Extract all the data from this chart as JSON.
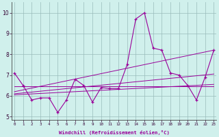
{
  "x": [
    0,
    1,
    2,
    3,
    4,
    5,
    6,
    7,
    8,
    9,
    10,
    11,
    12,
    13,
    14,
    15,
    16,
    17,
    18,
    19,
    20,
    21,
    22,
    23
  ],
  "line1": [
    7.1,
    6.5,
    5.8,
    5.9,
    5.9,
    5.2,
    5.8,
    6.8,
    6.5,
    5.7,
    6.4,
    6.35,
    6.35,
    7.5,
    9.7,
    10.0,
    8.3,
    8.2,
    7.1,
    7.0,
    6.5,
    5.8,
    6.9,
    8.2
  ],
  "trend1_x": [
    0,
    23
  ],
  "trend1_y": [
    6.45,
    6.45
  ],
  "trend2_x": [
    0,
    23
  ],
  "trend2_y": [
    6.05,
    6.55
  ],
  "trend3_x": [
    0,
    23
  ],
  "trend3_y": [
    6.1,
    7.05
  ],
  "trend4_x": [
    0,
    23
  ],
  "trend4_y": [
    6.2,
    8.2
  ],
  "line_color": "#990099",
  "bg_color": "#d0f0ec",
  "grid_color": "#99bbbb",
  "ylim": [
    4.85,
    10.5
  ],
  "xlim": [
    -0.3,
    23.3
  ],
  "yticks": [
    5,
    6,
    7,
    8,
    9,
    10
  ],
  "xlabel": "Windchill (Refroidissement éolien,°C)"
}
